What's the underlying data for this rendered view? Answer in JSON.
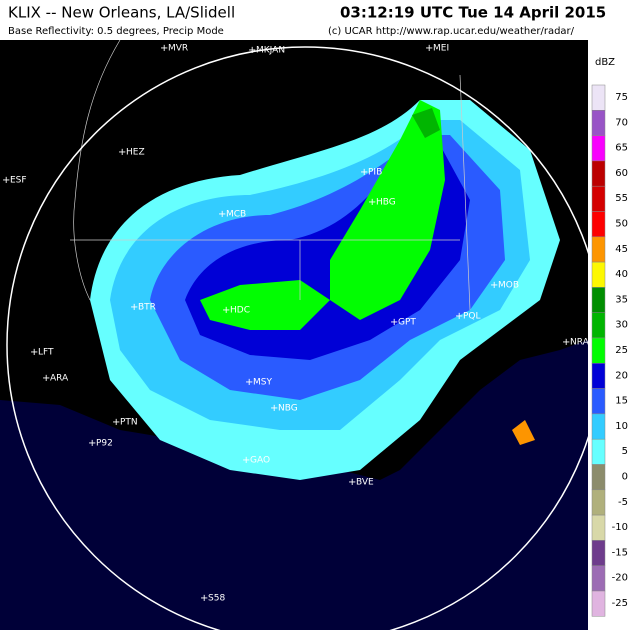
{
  "header": {
    "station": "KLIX -- New Orleans, LA/Slidell",
    "time": "03:12:19 UTC Tue 14 April 2015",
    "mode": "Base Reflectivity: 0.5 degrees, Precip Mode",
    "credit": "(c) UCAR  http://www.rap.ucar.edu/weather/radar/"
  },
  "legend": {
    "unit": "dBZ",
    "levels": [
      {
        "value": 75,
        "color": "#ece4f6"
      },
      {
        "value": 70,
        "color": "#9854c6"
      },
      {
        "value": 65,
        "color": "#f800fd"
      },
      {
        "value": 60,
        "color": "#bc0000"
      },
      {
        "value": 55,
        "color": "#d40000"
      },
      {
        "value": 50,
        "color": "#fd0000"
      },
      {
        "value": 45,
        "color": "#fd9500"
      },
      {
        "value": 40,
        "color": "#fdf802"
      },
      {
        "value": 35,
        "color": "#008e00"
      },
      {
        "value": 30,
        "color": "#01b501"
      },
      {
        "value": 25,
        "color": "#02fd02"
      },
      {
        "value": 20,
        "color": "#0000d6"
      },
      {
        "value": 15,
        "color": "#2a5bff"
      },
      {
        "value": 10,
        "color": "#33ccff"
      },
      {
        "value": 5,
        "color": "#66ffff"
      },
      {
        "value": 0,
        "color": "#8c8c6c"
      },
      {
        "value": -5,
        "color": "#b0b07c"
      },
      {
        "value": -10,
        "color": "#d8d8a8"
      },
      {
        "value": -15,
        "color": "#6e3c8c"
      },
      {
        "value": -20,
        "color": "#9c6cb4"
      },
      {
        "value": -25,
        "color": "#e0b4e0"
      }
    ]
  },
  "map": {
    "cities": [
      "MVR",
      "MKJAN",
      "MEI",
      "HEZ",
      "ESF",
      "MCB",
      "PIB",
      "HBG",
      "BTR",
      "HDC",
      "LFT",
      "ARA",
      "MSY",
      "NBG",
      "PTN",
      "P92",
      "GAO",
      "BVE",
      "S58",
      "GPT",
      "PQL",
      "MOB",
      "NRA"
    ]
  }
}
